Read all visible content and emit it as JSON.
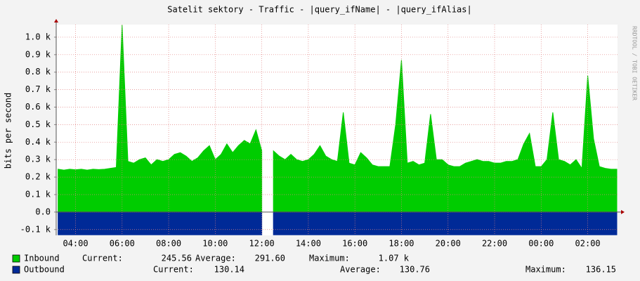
{
  "chart_data": {
    "type": "area",
    "title": "Satelit sektory - Traffic - |query_ifName| - |query_ifAlias|",
    "ylabel": "bits per second",
    "watermark": "RRDTOOL / TOBI OETIKER",
    "x": [
      3.25,
      3.5,
      3.75,
      4,
      4.25,
      4.5,
      4.75,
      5,
      5.25,
      5.5,
      5.75,
      6,
      6.25,
      6.5,
      6.75,
      7,
      7.25,
      7.5,
      7.75,
      8,
      8.25,
      8.5,
      8.75,
      9,
      9.25,
      9.5,
      9.75,
      10,
      10.25,
      10.5,
      10.75,
      11,
      11.25,
      11.5,
      11.75,
      12,
      12.25,
      12.5,
      12.75,
      13,
      13.25,
      13.5,
      13.75,
      14,
      14.25,
      14.5,
      14.75,
      15,
      15.25,
      15.5,
      15.75,
      16,
      16.25,
      16.5,
      16.75,
      17,
      17.25,
      17.5,
      17.75,
      18,
      18.25,
      18.5,
      18.75,
      19,
      19.25,
      19.5,
      19.75,
      20,
      20.25,
      20.5,
      20.75,
      21,
      21.25,
      21.5,
      21.75,
      22,
      22.25,
      22.5,
      22.75,
      23,
      23.25,
      23.5,
      23.75,
      24,
      24.25,
      24.5,
      24.75,
      25,
      25.25,
      25.5,
      25.75,
      26,
      26.25,
      26.5,
      26.75,
      27,
      27.25
    ],
    "series": [
      {
        "name": "Inbound",
        "color": "#00cc00",
        "values": [
          245,
          240,
          245,
          242,
          245,
          240,
          245,
          243,
          245,
          250,
          255,
          1070,
          290,
          280,
          300,
          310,
          270,
          300,
          290,
          300,
          330,
          340,
          320,
          290,
          310,
          350,
          380,
          300,
          330,
          390,
          340,
          380,
          410,
          390,
          470,
          350,
          null,
          350,
          320,
          300,
          330,
          300,
          290,
          300,
          330,
          380,
          320,
          300,
          290,
          570,
          280,
          270,
          340,
          310,
          270,
          260,
          260,
          260,
          500,
          870,
          280,
          290,
          270,
          280,
          560,
          300,
          300,
          270,
          260,
          260,
          280,
          290,
          300,
          290,
          290,
          280,
          280,
          290,
          290,
          300,
          390,
          450,
          260,
          260,
          300,
          570,
          300,
          290,
          270,
          300,
          250,
          780,
          420,
          260,
          250,
          245,
          245
        ],
        "stats": [
          {
            "label": "Current:",
            "value": "245.56"
          },
          {
            "label": "Average:",
            "value": "291.60"
          },
          {
            "label": "Maximum:",
            "value": "1.07 k"
          }
        ]
      },
      {
        "name": "Outbound",
        "color": "#002a97",
        "values": [
          -130,
          -130,
          -130,
          -130,
          -130,
          -130,
          -130,
          -130,
          -130,
          -130,
          -130,
          -130,
          -130,
          -130,
          -130,
          -130,
          -130,
          -130,
          -130,
          -130,
          -130,
          -130,
          -130,
          -130,
          -130,
          -130,
          -130,
          -130,
          -130,
          -130,
          -130,
          -130,
          -130,
          -130,
          -130,
          -130,
          null,
          -130,
          -130,
          -130,
          -130,
          -130,
          -130,
          -130,
          -130,
          -130,
          -130,
          -130,
          -130,
          -130,
          -130,
          -130,
          -130,
          -130,
          -130,
          -130,
          -130,
          -130,
          -130,
          -130,
          -130,
          -130,
          -130,
          -130,
          -130,
          -130,
          -130,
          -130,
          -130,
          -130,
          -130,
          -130,
          -130,
          -130,
          -130,
          -130,
          -130,
          -130,
          -130,
          -130,
          -130,
          -130,
          -130,
          -130,
          -130,
          -130,
          -130,
          -130,
          -130,
          -130,
          -130,
          -130,
          -130,
          -130,
          -130,
          -130,
          -130
        ],
        "stats": [
          {
            "label": "Current:",
            "value": "130.14"
          },
          {
            "label": "Average:",
            "value": "130.76"
          },
          {
            "label": "Maximum:",
            "value": "136.15"
          }
        ]
      }
    ],
    "xlim": [
      3.17,
      27.28
    ],
    "xticks": [
      {
        "value": 4,
        "label": "04:00"
      },
      {
        "value": 6,
        "label": "06:00"
      },
      {
        "value": 8,
        "label": "08:00"
      },
      {
        "value": 10,
        "label": "10:00"
      },
      {
        "value": 12,
        "label": "12:00"
      },
      {
        "value": 14,
        "label": "14:00"
      },
      {
        "value": 16,
        "label": "16:00"
      },
      {
        "value": 18,
        "label": "18:00"
      },
      {
        "value": 20,
        "label": "20:00"
      },
      {
        "value": 22,
        "label": "22:00"
      },
      {
        "value": 24,
        "label": "00:00"
      },
      {
        "value": 26,
        "label": "02:00"
      }
    ],
    "ylim": [
      -133,
      1072
    ],
    "yticks": [
      {
        "value": -100,
        "label": "-0.1 k"
      },
      {
        "value": 0,
        "label": "0.0"
      },
      {
        "value": 100,
        "label": "0.1 k"
      },
      {
        "value": 200,
        "label": "0.2 k"
      },
      {
        "value": 300,
        "label": "0.3 k"
      },
      {
        "value": 400,
        "label": "0.4 k"
      },
      {
        "value": 500,
        "label": "0.5 k"
      },
      {
        "value": 600,
        "label": "0.6 k"
      },
      {
        "value": 700,
        "label": "0.7 k"
      },
      {
        "value": 800,
        "label": "0.8 k"
      },
      {
        "value": 900,
        "label": "0.9 k"
      },
      {
        "value": 1000,
        "label": "1.0 k"
      }
    ],
    "grid": true
  }
}
